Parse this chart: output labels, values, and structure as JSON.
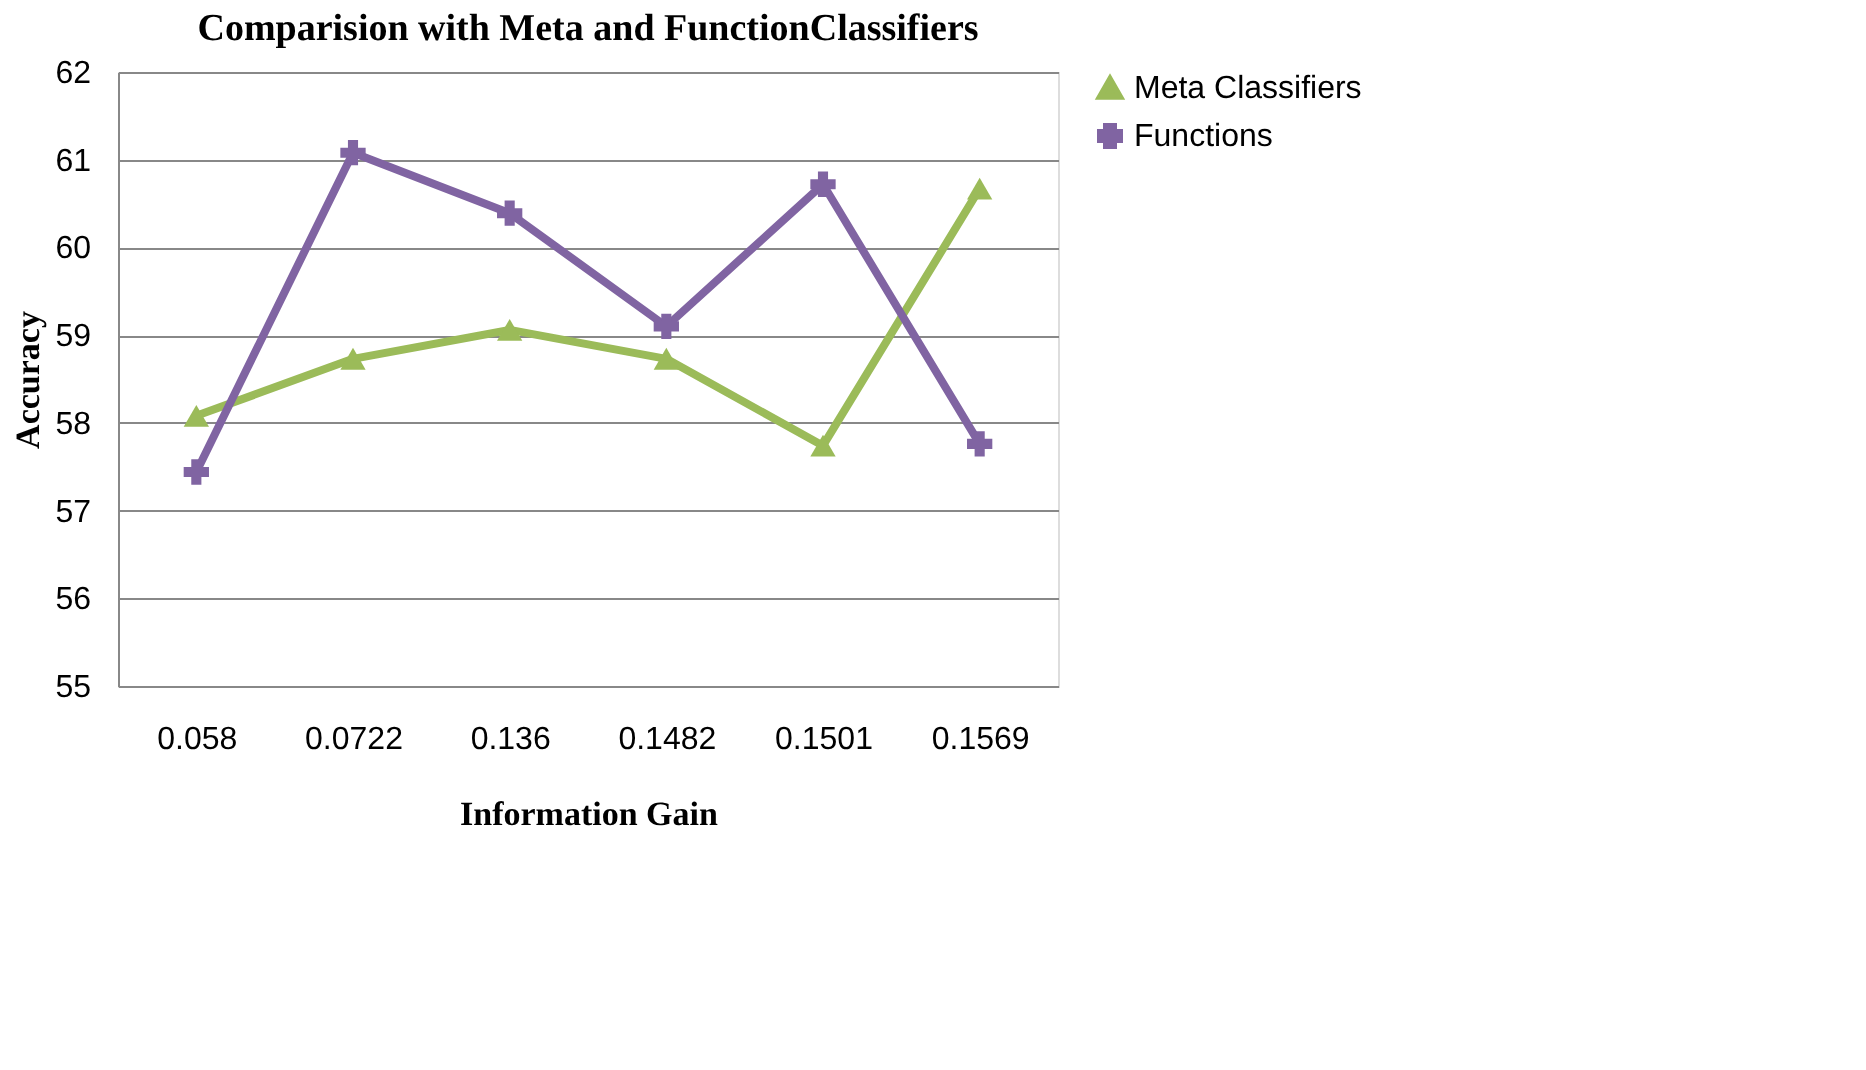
{
  "chart_data": {
    "type": "line",
    "title": "Comparision with Meta and FunctionClassifiers",
    "xlabel": "Information Gain",
    "ylabel": "Accuracy",
    "categories": [
      "0.058",
      "0.0722",
      "0.136",
      "0.1482",
      "0.1501",
      "0.1569"
    ],
    "series": [
      {
        "name": "Meta Classifiers",
        "color": "#9bbb59",
        "marker": "triangle",
        "values": [
          58.08,
          58.73,
          59.06,
          58.73,
          57.74,
          60.67
        ]
      },
      {
        "name": "Functions",
        "color": "#8064a2",
        "marker": "cross",
        "values": [
          57.44,
          61.08,
          60.39,
          59.1,
          60.72,
          57.76
        ]
      }
    ],
    "ylim": [
      55,
      62
    ],
    "yticks": [
      55,
      56,
      57,
      58,
      59,
      60,
      61,
      62
    ],
    "grid": "y",
    "legend": "right"
  }
}
